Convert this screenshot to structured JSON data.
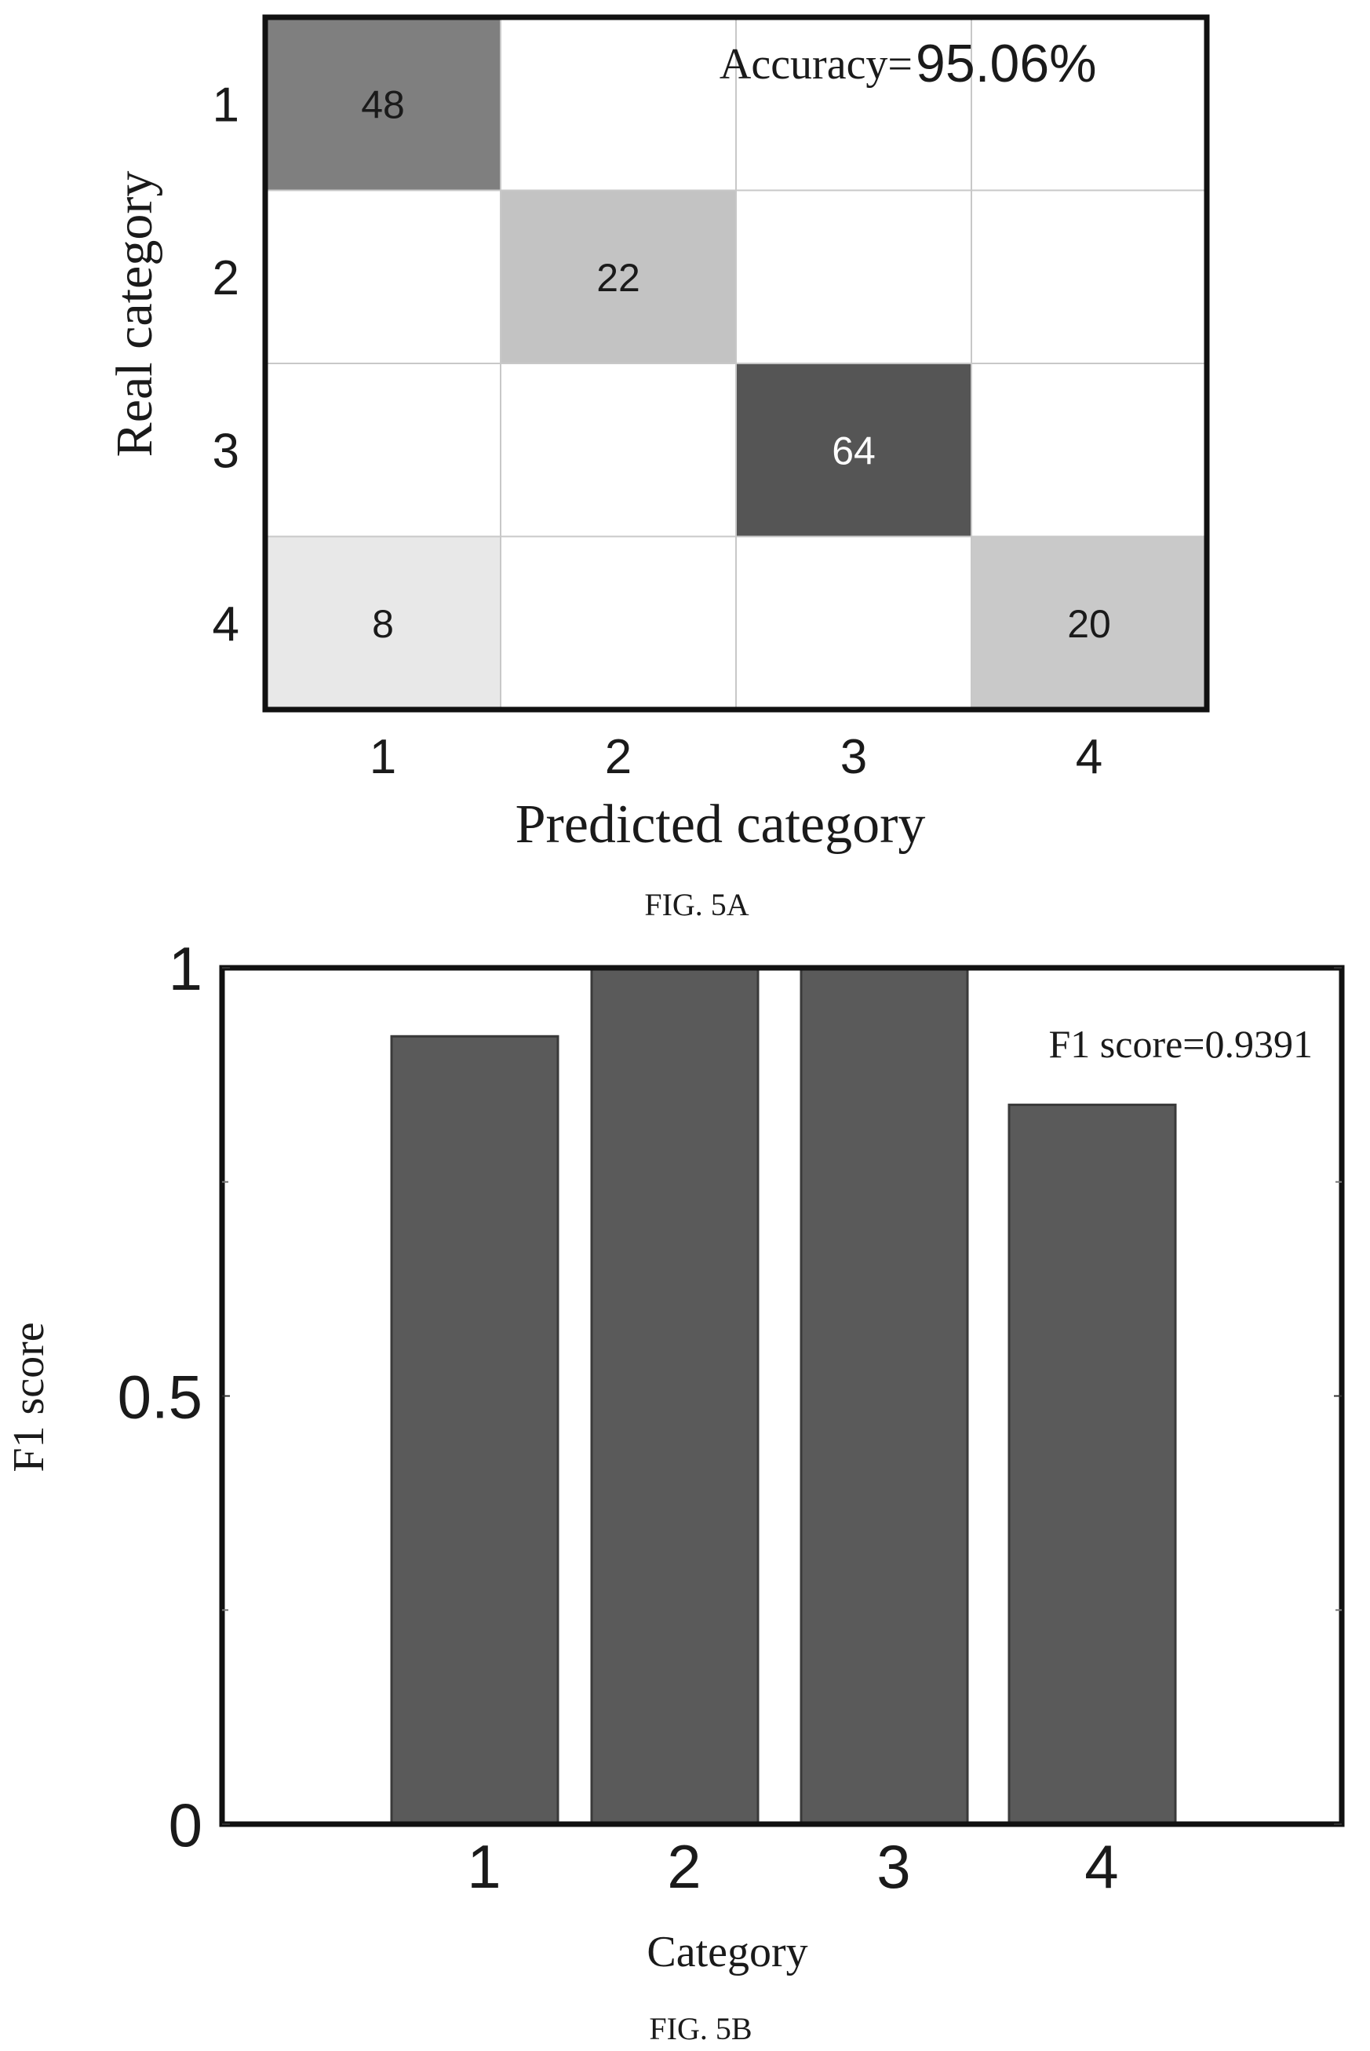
{
  "chart_data": [
    {
      "type": "heatmap",
      "title": "",
      "xlabel": "Predicted category",
      "ylabel": "Real category",
      "x_categories": [
        "1",
        "2",
        "3",
        "4"
      ],
      "y_categories": [
        "1",
        "2",
        "3",
        "4"
      ],
      "matrix": [
        [
          48,
          null,
          null,
          null
        ],
        [
          null,
          22,
          null,
          null
        ],
        [
          null,
          null,
          64,
          null
        ],
        [
          8,
          null,
          null,
          20
        ]
      ],
      "annotation": {
        "label": "Accuracy=",
        "value": "95.06%"
      },
      "caption": "FIG. 5A",
      "colors": {
        "high": "#555555",
        "low": "#e8e8e8",
        "empty": "#ffffff",
        "grid": "#c8c8c8",
        "frame": "#111111"
      }
    },
    {
      "type": "bar",
      "title": "",
      "xlabel": "Category",
      "ylabel": "F1 score",
      "categories": [
        "1",
        "2",
        "3",
        "4"
      ],
      "series": [
        {
          "values": [
            0.92,
            1.0,
            1.0,
            0.84
          ]
        }
      ],
      "ylim": [
        0,
        1
      ],
      "yticks": [
        "0",
        "0.5",
        "1"
      ],
      "yminor_ticks": [
        0.25,
        0.75
      ],
      "grid": false,
      "annotation": "F1 score=0.9391",
      "caption": "FIG. 5B",
      "colors": {
        "bar": "#5a5a5a",
        "bar_edge": "#3a3a3a",
        "frame": "#111111"
      }
    }
  ]
}
